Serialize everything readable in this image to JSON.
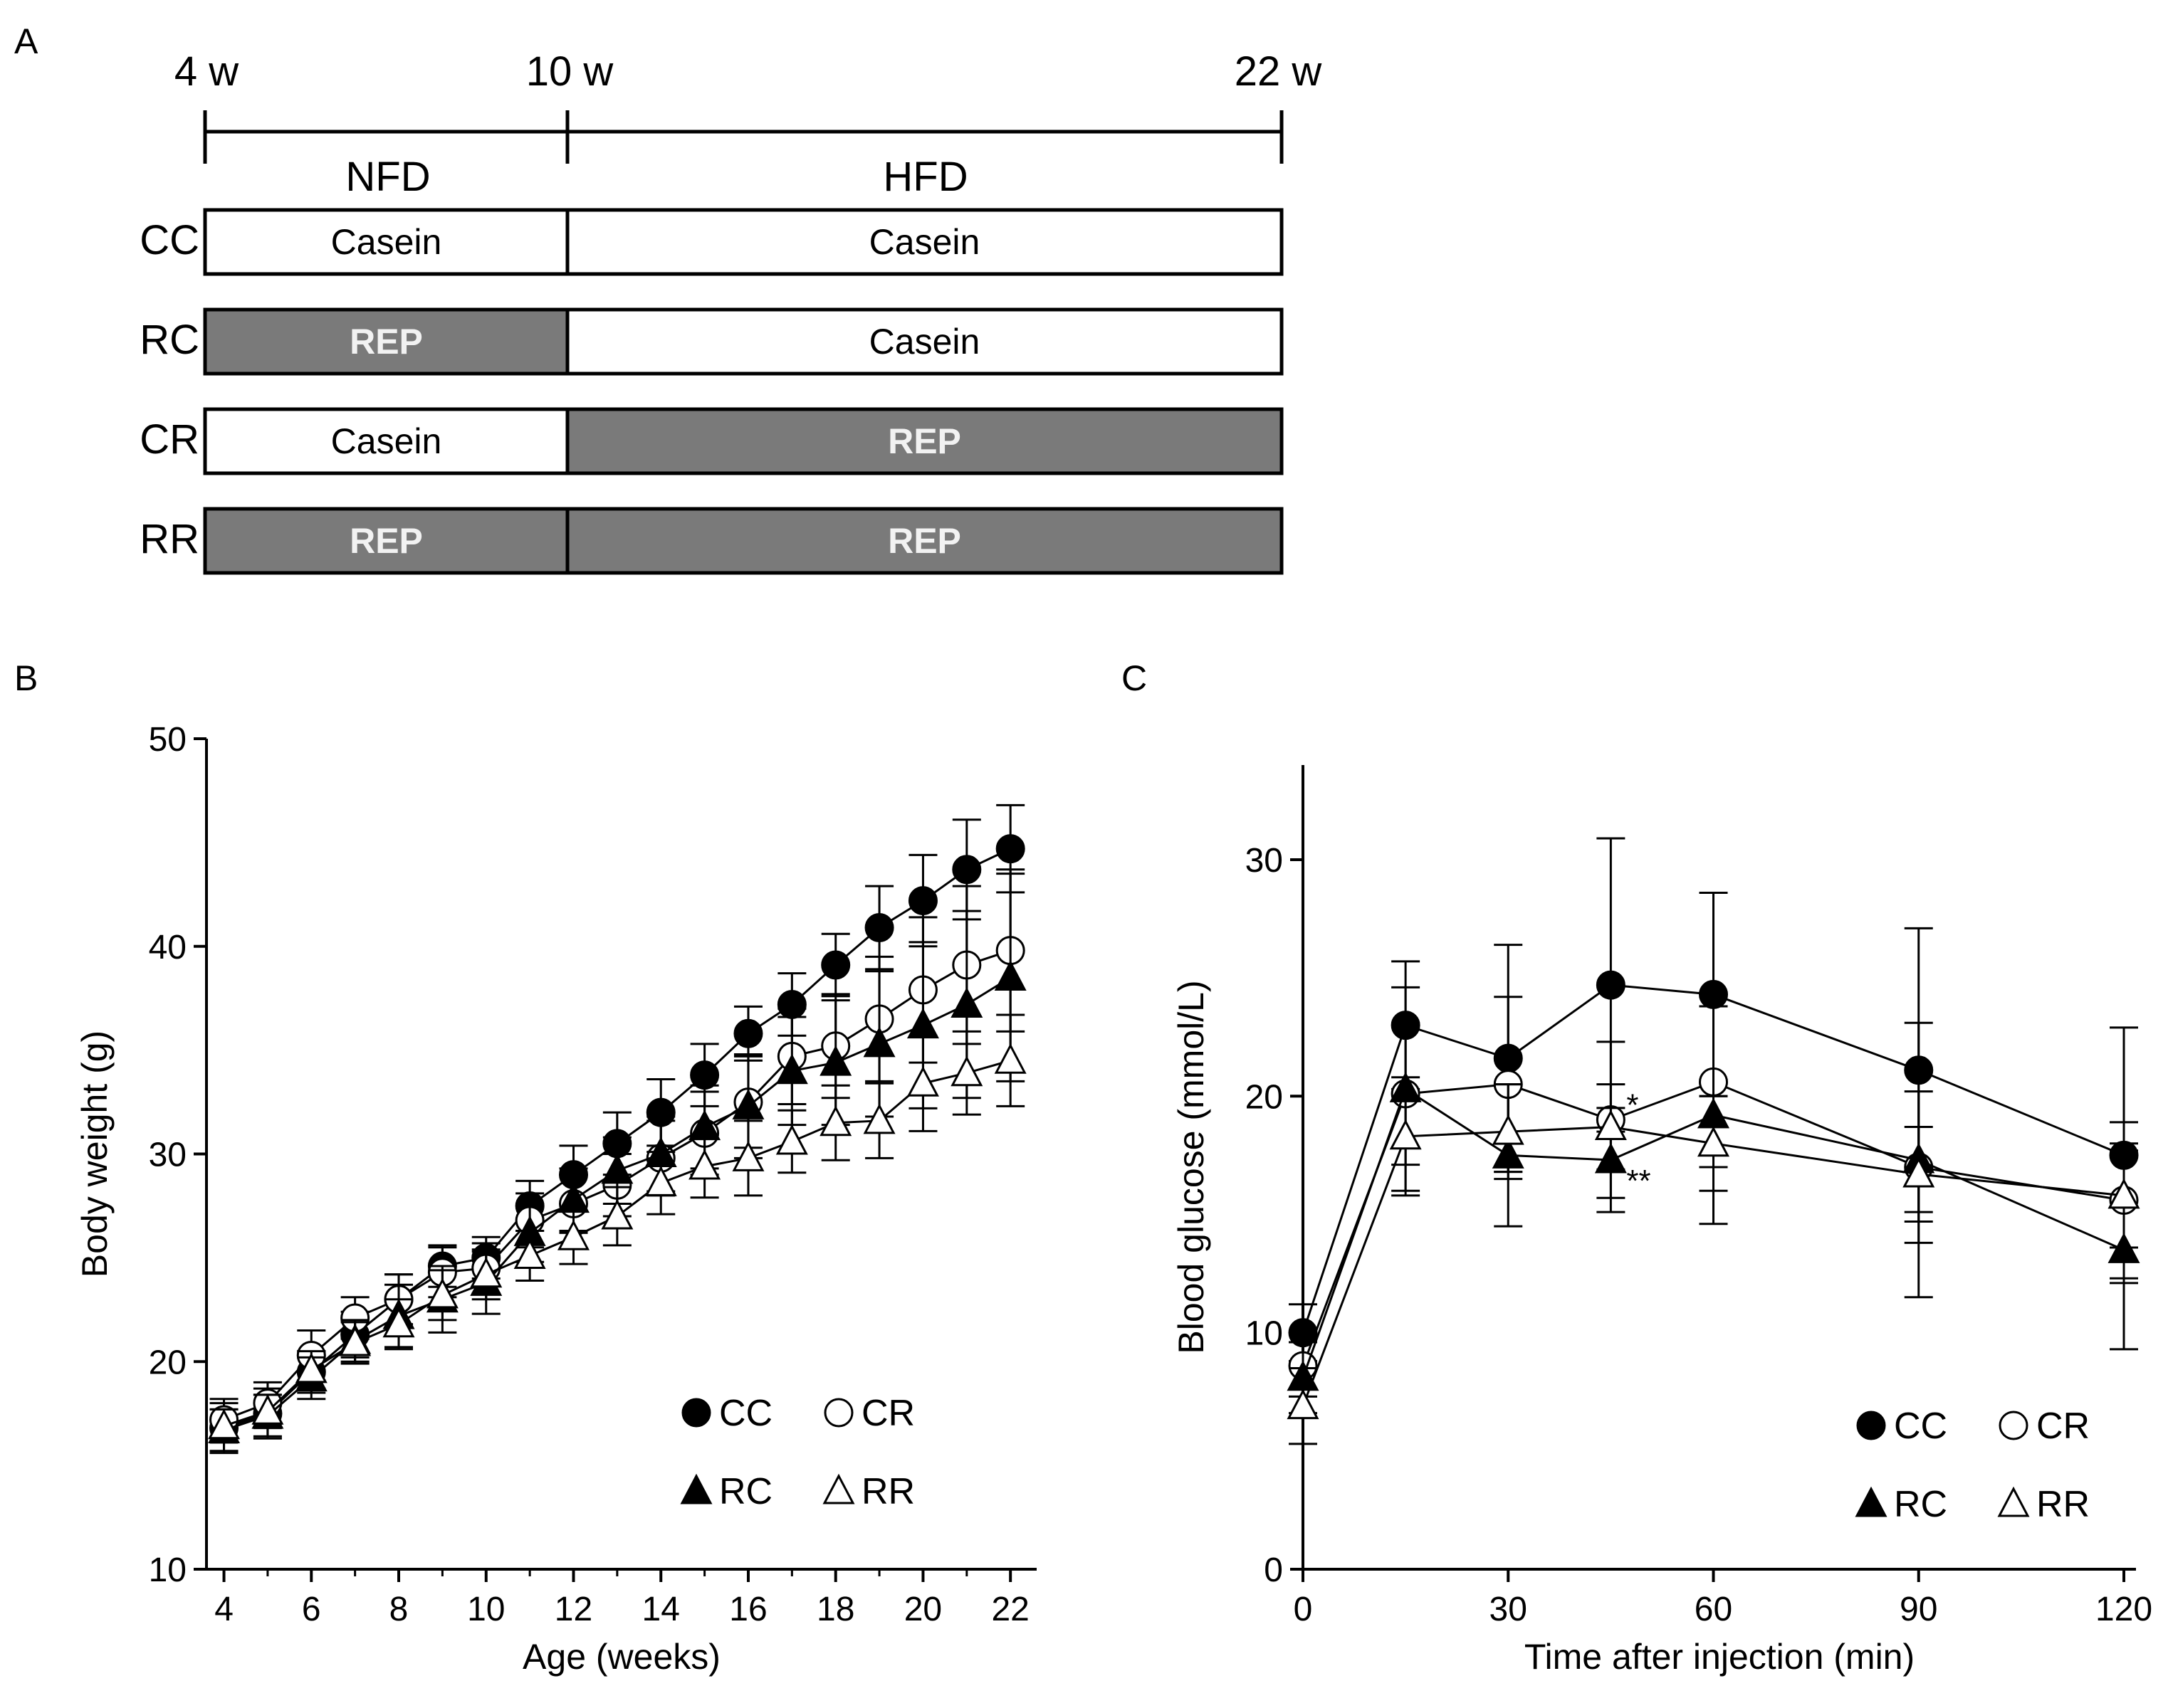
{
  "panels": {
    "a": {
      "letter": "A",
      "timeline": {
        "start": "4 w",
        "middle": "10 w",
        "end": "22 w"
      },
      "phases": {
        "first": "NFD",
        "second": "HFD"
      },
      "groups": [
        {
          "name": "CC",
          "first": "Casein",
          "second": "Casein"
        },
        {
          "name": "RC",
          "first": "REP",
          "second": "Casein"
        },
        {
          "name": "CR",
          "first": "Casein",
          "second": "REP"
        },
        {
          "name": "RR",
          "first": "REP",
          "second": "REP"
        }
      ]
    },
    "b": {
      "letter": "B"
    },
    "c": {
      "letter": "C"
    }
  },
  "colors": {
    "rep_fill": "#7a7a7a",
    "rep_text": "#f2f2f2",
    "casein_fill": "#ffffff",
    "line": "#000000"
  },
  "chart_data": [
    {
      "id": "B",
      "type": "line",
      "xlabel": "Age (weeks)",
      "ylabel": "Body weight (g)",
      "xlim": [
        3.6,
        22.6
      ],
      "ylim": [
        10,
        50
      ],
      "xticks": [
        4,
        6,
        8,
        10,
        12,
        14,
        16,
        18,
        20,
        22
      ],
      "yticks": [
        10,
        20,
        30,
        40,
        50
      ],
      "x": [
        4,
        5,
        6,
        7,
        8,
        9,
        10,
        11,
        12,
        13,
        14,
        15,
        16,
        17,
        18,
        19,
        20,
        21,
        22
      ],
      "series": [
        {
          "name": "CC",
          "marker": "circle",
          "filled": true,
          "values": [
            16.8,
            17.5,
            19.5,
            21.3,
            23.0,
            24.6,
            25.0,
            27.5,
            29.0,
            30.5,
            32.0,
            33.8,
            35.8,
            37.2,
            39.1,
            40.9,
            42.2,
            43.7,
            44.7
          ],
          "errors": [
            1.2,
            1.2,
            1.0,
            1.1,
            1.2,
            1.0,
            1.0,
            1.2,
            1.4,
            1.5,
            1.6,
            1.5,
            1.3,
            1.5,
            1.5,
            2.0,
            2.2,
            2.4,
            2.1
          ]
        },
        {
          "name": "CR",
          "marker": "circle",
          "filled": false,
          "values": [
            17.2,
            18.0,
            20.3,
            22.1,
            23.0,
            24.3,
            24.5,
            26.8,
            27.6,
            28.5,
            29.8,
            31.0,
            32.5,
            34.7,
            35.2,
            36.5,
            37.9,
            39.1,
            39.8
          ],
          "errors": [
            1.0,
            1.0,
            1.2,
            1.0,
            1.2,
            1.2,
            1.2,
            1.3,
            1.4,
            1.5,
            1.8,
            2.0,
            2.2,
            2.3,
            2.5,
            3.0,
            3.5,
            3.8,
            3.9
          ]
        },
        {
          "name": "RC",
          "marker": "triangle",
          "filled": true,
          "values": [
            16.7,
            17.4,
            19.2,
            21.0,
            22.2,
            23.0,
            23.8,
            26.2,
            27.8,
            29.2,
            30.0,
            31.3,
            32.3,
            34.0,
            34.4,
            35.3,
            36.2,
            37.2,
            38.5
          ],
          "errors": [
            1.0,
            1.0,
            1.0,
            1.0,
            1.5,
            1.6,
            1.5,
            1.4,
            1.5,
            1.6,
            1.8,
            2.0,
            2.5,
            2.6,
            3.0,
            3.5,
            4.0,
            4.5,
            5.0
          ]
        },
        {
          "name": "RR",
          "marker": "triangle",
          "filled": false,
          "values": [
            16.9,
            17.6,
            19.6,
            20.9,
            21.8,
            23.2,
            24.2,
            25.1,
            26.0,
            27.0,
            28.6,
            29.4,
            29.8,
            30.6,
            31.5,
            31.6,
            33.4,
            33.9,
            34.5
          ],
          "errors": [
            0.8,
            0.8,
            0.9,
            1.0,
            1.2,
            1.2,
            1.2,
            1.2,
            1.3,
            1.4,
            1.5,
            1.5,
            1.8,
            1.5,
            1.8,
            1.8,
            2.3,
            2.0,
            2.2
          ]
        }
      ],
      "legend": [
        "CC",
        "CR",
        "RC",
        "RR"
      ],
      "legend_position": "bottom-right"
    },
    {
      "id": "C",
      "type": "line",
      "xlabel": "Time after injection (min)",
      "ylabel": "Blood glucose (mmol/L)",
      "xlim": [
        0,
        120
      ],
      "ylim": [
        0,
        34
      ],
      "xticks": [
        0,
        30,
        60,
        90,
        120
      ],
      "yticks": [
        0,
        10,
        20,
        30
      ],
      "x": [
        0,
        15,
        30,
        45,
        60,
        90,
        120
      ],
      "series": [
        {
          "name": "CC",
          "marker": "circle",
          "filled": true,
          "values": [
            10.0,
            23.0,
            21.6,
            24.7,
            24.3,
            21.1,
            17.5
          ],
          "errors": [
            1.2,
            2.7,
            4.8,
            6.2,
            4.3,
            6.0,
            5.4
          ]
        },
        {
          "name": "CR",
          "marker": "circle",
          "filled": false,
          "values": [
            8.6,
            20.1,
            20.5,
            19.0,
            20.6,
            17.0,
            15.6
          ],
          "errors": [
            1.3,
            3.0,
            3.7,
            3.3,
            3.6,
            3.2,
            3.3
          ]
        },
        {
          "name": "RC",
          "marker": "triangle",
          "filled": true,
          "values": [
            8.1,
            20.3,
            17.5,
            17.3,
            19.2,
            17.3,
            13.5
          ],
          "errors": [
            1.5,
            4.3,
            3.0,
            2.2,
            4.6,
            5.8,
            4.2
          ]
        },
        {
          "name": "RR",
          "marker": "triangle",
          "filled": false,
          "values": [
            6.9,
            18.3,
            18.5,
            18.7,
            18.0,
            16.7,
            15.8
          ],
          "errors": [
            1.6,
            2.5,
            2.0,
            1.8,
            2.0,
            2.0,
            2.2
          ]
        }
      ],
      "annotations": [
        {
          "text": "*",
          "x": 45,
          "y": 19.6
        },
        {
          "text": "**",
          "x": 45,
          "y": 16.4
        }
      ],
      "legend": [
        "CC",
        "CR",
        "RC",
        "RR"
      ],
      "legend_position": "bottom-right"
    }
  ]
}
